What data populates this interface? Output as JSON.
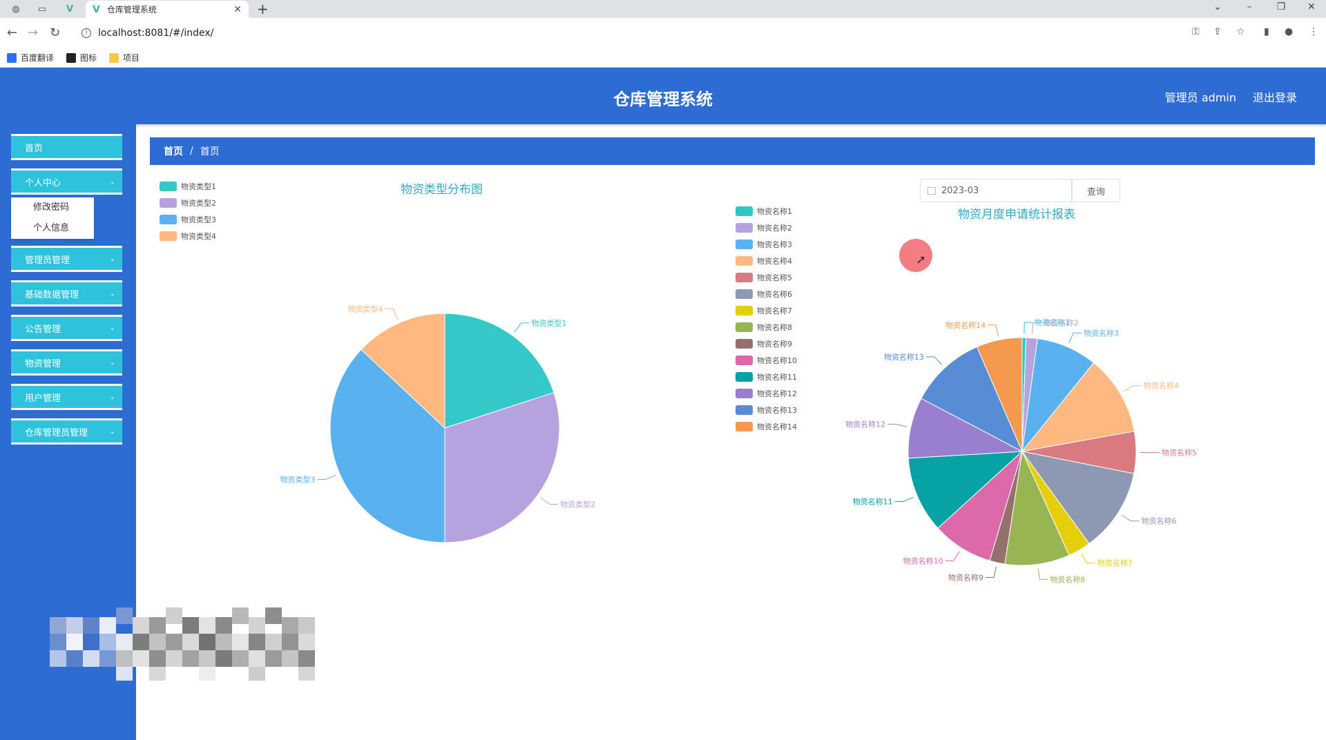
{
  "browser": {
    "tab_title": "仓库管理系统",
    "url": "localhost:8081/#/index/",
    "bookmarks": [
      {
        "label": "百度翻译",
        "color": "#2a72f3"
      },
      {
        "label": "图标",
        "color": "#222222"
      },
      {
        "label": "项目",
        "color": "#f6c844"
      }
    ]
  },
  "header": {
    "title": "仓库管理系统",
    "user": "管理员 admin",
    "logout": "退出登录"
  },
  "sidebar": {
    "items": [
      {
        "label": "首页",
        "has_children": false
      },
      {
        "label": "个人中心",
        "has_children": true
      },
      {
        "label": "管理员管理",
        "has_children": true
      },
      {
        "label": "基础数据管理",
        "has_children": true
      },
      {
        "label": "公告管理",
        "has_children": true
      },
      {
        "label": "物资管理",
        "has_children": true
      },
      {
        "label": "用户管理",
        "has_children": true
      },
      {
        "label": "仓库管理员管理",
        "has_children": true
      }
    ],
    "submenu": [
      "修改密码",
      "个人信息"
    ]
  },
  "breadcrumb": [
    "首页",
    "首页"
  ],
  "query": {
    "date_value": "2023-03",
    "button": "查询"
  },
  "colors": {
    "primary": "#2d6cd2",
    "menu": "#2fc2dc"
  },
  "chart_data": [
    {
      "type": "pie",
      "title": "物资类型分布图",
      "legend_position": "top-left",
      "categories": [
        "物资类型1",
        "物资类型2",
        "物资类型3",
        "物资类型4"
      ],
      "values": [
        20,
        30,
        37,
        13
      ],
      "colors": [
        "#35c8c8",
        "#b6a2de",
        "#5ab1ef",
        "#ffb980"
      ]
    },
    {
      "type": "pie",
      "title": "物资月度申请统计报表",
      "legend_position": "left",
      "categories": [
        "物资名称1",
        "物资名称2",
        "物资名称3",
        "物资名称4",
        "物资名称5",
        "物资名称6",
        "物资名称7",
        "物资名称8",
        "物资名称9",
        "物资名称10",
        "物资名称11",
        "物资名称12",
        "物资名称13",
        "物资名称14"
      ],
      "values": [
        0.5,
        1.5,
        8,
        10.5,
        5.5,
        11,
        3,
        8.5,
        2,
        8,
        10,
        8,
        10,
        6
      ],
      "colors": [
        "#2ec7c9",
        "#b6a2de",
        "#5ab1ef",
        "#ffb980",
        "#d87a80",
        "#8d98b3",
        "#e5cf0d",
        "#97b552",
        "#95706d",
        "#dc69aa",
        "#07a2a4",
        "#9a7fd1",
        "#588dd5",
        "#f5994e"
      ]
    }
  ]
}
